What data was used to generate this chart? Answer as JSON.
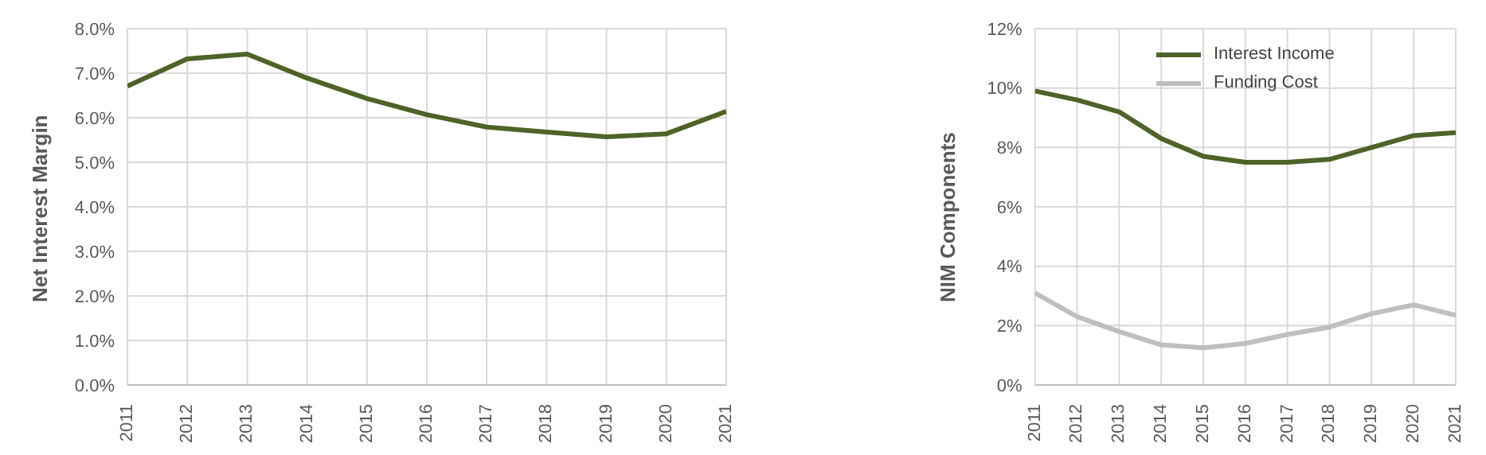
{
  "chart_data": [
    {
      "type": "line",
      "ylabel": "Net Interest Margin",
      "categories": [
        "2011",
        "2012",
        "2013",
        "2014",
        "2015",
        "2016",
        "2017",
        "2018",
        "2019",
        "2020",
        "2021"
      ],
      "series": [
        {
          "color": "#4f6228",
          "values": [
            6.71,
            7.32,
            7.43,
            6.89,
            6.43,
            6.07,
            5.79,
            5.68,
            5.57,
            5.64,
            6.14
          ]
        }
      ],
      "ylim": [
        0,
        8
      ],
      "yticks": [
        {
          "value": 0,
          "label": "0.0%"
        },
        {
          "value": 1,
          "label": "1.0%"
        },
        {
          "value": 2,
          "label": "2.0%"
        },
        {
          "value": 3,
          "label": "3.0%"
        },
        {
          "value": 4,
          "label": "4.0%"
        },
        {
          "value": 5,
          "label": "5.0%"
        },
        {
          "value": 6,
          "label": "6.0%"
        },
        {
          "value": 7,
          "label": "7.0%"
        },
        {
          "value": 8,
          "label": "8.0%"
        }
      ],
      "grid": true,
      "legend": false,
      "marker": "none"
    },
    {
      "type": "line",
      "ylabel": "NIM Components",
      "categories": [
        "2011",
        "2012",
        "2013",
        "2014",
        "2015",
        "2016",
        "2017",
        "2018",
        "2019",
        "2020",
        "2021"
      ],
      "series": [
        {
          "name": "Interest Income",
          "color": "#4f6228",
          "values": [
            9.9,
            9.6,
            9.2,
            8.3,
            7.7,
            7.5,
            7.5,
            7.6,
            8.0,
            8.4,
            8.5
          ]
        },
        {
          "name": "Funding Cost",
          "color": "#bfbfbf",
          "values": [
            3.1,
            2.3,
            1.8,
            1.35,
            1.25,
            1.4,
            1.7,
            1.95,
            2.4,
            2.7,
            2.35
          ]
        }
      ],
      "ylim": [
        0,
        12
      ],
      "yticks": [
        {
          "value": 0,
          "label": "0%"
        },
        {
          "value": 2,
          "label": "2%"
        },
        {
          "value": 4,
          "label": "4%"
        },
        {
          "value": 6,
          "label": "6%"
        },
        {
          "value": 8,
          "label": "8%"
        },
        {
          "value": 10,
          "label": "10%"
        },
        {
          "value": 12,
          "label": "12%"
        }
      ],
      "grid": true,
      "legend": "top",
      "marker": "none"
    }
  ]
}
